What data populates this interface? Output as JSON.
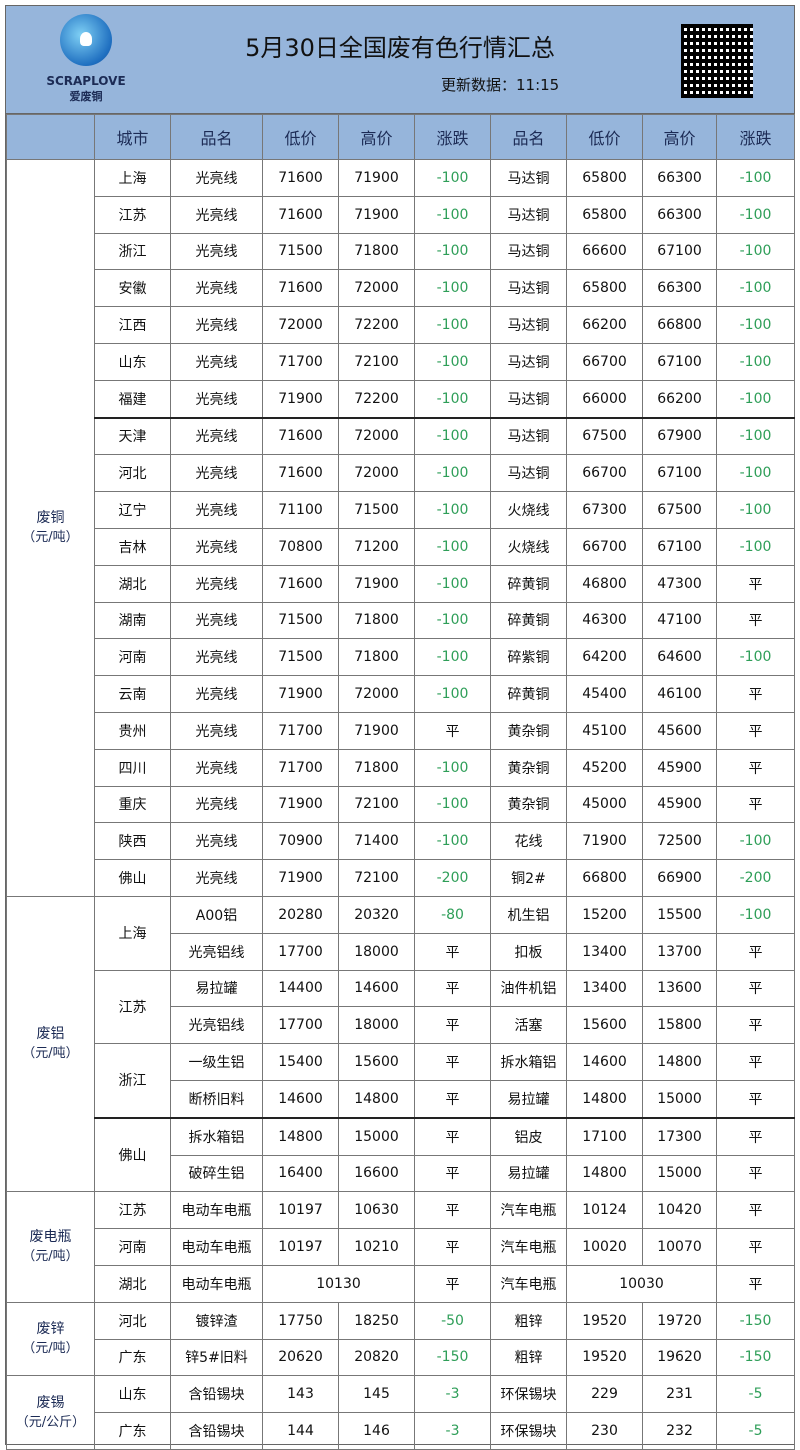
{
  "header": {
    "logo_text": "SCRAPLOVE",
    "logo_cn": "爱废铜",
    "title": "5月30日全国废有色行情汇总",
    "updated": "更新数据：11:15",
    "qr_icon": "qr-code-icon"
  },
  "columns": [
    "",
    "城市",
    "品名",
    "低价",
    "高价",
    "涨跌",
    "品名",
    "低价",
    "高价",
    "涨跌"
  ],
  "colors": {
    "header_bg": "#96b5db",
    "down": "#2e9e58",
    "text": "#1c2b55"
  },
  "sections": [
    {
      "name": "废铜",
      "unit": "（元/吨）",
      "rows": [
        [
          "上海",
          "光亮线",
          "71600",
          "71900",
          "-100",
          "马达铜",
          "65800",
          "66300",
          "-100"
        ],
        [
          "江苏",
          "光亮线",
          "71600",
          "71900",
          "-100",
          "马达铜",
          "65800",
          "66300",
          "-100"
        ],
        [
          "浙江",
          "光亮线",
          "71500",
          "71800",
          "-100",
          "马达铜",
          "66600",
          "67100",
          "-100"
        ],
        [
          "安徽",
          "光亮线",
          "71600",
          "72000",
          "-100",
          "马达铜",
          "65800",
          "66300",
          "-100"
        ],
        [
          "江西",
          "光亮线",
          "72000",
          "72200",
          "-100",
          "马达铜",
          "66200",
          "66800",
          "-100"
        ],
        [
          "山东",
          "光亮线",
          "71700",
          "72100",
          "-100",
          "马达铜",
          "66700",
          "67100",
          "-100"
        ],
        [
          "福建",
          "光亮线",
          "71900",
          "72200",
          "-100",
          "马达铜",
          "66000",
          "66200",
          "-100"
        ],
        [
          "天津",
          "光亮线",
          "71600",
          "72000",
          "-100",
          "马达铜",
          "67500",
          "67900",
          "-100"
        ],
        [
          "河北",
          "光亮线",
          "71600",
          "72000",
          "-100",
          "马达铜",
          "66700",
          "67100",
          "-100"
        ],
        [
          "辽宁",
          "光亮线",
          "71100",
          "71500",
          "-100",
          "火烧线",
          "67300",
          "67500",
          "-100"
        ],
        [
          "吉林",
          "光亮线",
          "70800",
          "71200",
          "-100",
          "火烧线",
          "66700",
          "67100",
          "-100"
        ],
        [
          "湖北",
          "光亮线",
          "71600",
          "71900",
          "-100",
          "碎黄铜",
          "46800",
          "47300",
          "平"
        ],
        [
          "湖南",
          "光亮线",
          "71500",
          "71800",
          "-100",
          "碎黄铜",
          "46300",
          "47100",
          "平"
        ],
        [
          "河南",
          "光亮线",
          "71500",
          "71800",
          "-100",
          "碎紫铜",
          "64200",
          "64600",
          "-100"
        ],
        [
          "云南",
          "光亮线",
          "71900",
          "72000",
          "-100",
          "碎黄铜",
          "45400",
          "46100",
          "平"
        ],
        [
          "贵州",
          "光亮线",
          "71700",
          "71900",
          "平",
          "黄杂铜",
          "45100",
          "45600",
          "平"
        ],
        [
          "四川",
          "光亮线",
          "71700",
          "71800",
          "-100",
          "黄杂铜",
          "45200",
          "45900",
          "平"
        ],
        [
          "重庆",
          "光亮线",
          "71900",
          "72100",
          "-100",
          "黄杂铜",
          "45000",
          "45900",
          "平"
        ],
        [
          "陕西",
          "光亮线",
          "70900",
          "71400",
          "-100",
          "花线",
          "71900",
          "72500",
          "-100"
        ],
        [
          "佛山",
          "光亮线",
          "71900",
          "72100",
          "-200",
          "铜2#",
          "66800",
          "66900",
          "-200"
        ]
      ]
    },
    {
      "name": "废铝",
      "unit": "（元/吨）",
      "rows": [
        [
          "上海",
          "A00铝",
          "20280",
          "20320",
          "-80",
          "机生铝",
          "15200",
          "15500",
          "-100"
        ],
        [
          "上海",
          "光亮铝线",
          "17700",
          "18000",
          "平",
          "扣板",
          "13400",
          "13700",
          "平"
        ],
        [
          "江苏",
          "易拉罐",
          "14400",
          "14600",
          "平",
          "油件机铝",
          "13400",
          "13600",
          "平"
        ],
        [
          "江苏",
          "光亮铝线",
          "17700",
          "18000",
          "平",
          "活塞",
          "15600",
          "15800",
          "平"
        ],
        [
          "浙江",
          "一级生铝",
          "15400",
          "15600",
          "平",
          "拆水箱铝",
          "14600",
          "14800",
          "平"
        ],
        [
          "浙江",
          "断桥旧料",
          "14600",
          "14800",
          "平",
          "易拉罐",
          "14800",
          "15000",
          "平"
        ],
        [
          "佛山",
          "拆水箱铝",
          "14800",
          "15000",
          "平",
          "铝皮",
          "17100",
          "17300",
          "平"
        ],
        [
          "佛山",
          "破碎生铝",
          "16400",
          "16600",
          "平",
          "易拉罐",
          "14800",
          "15000",
          "平"
        ]
      ]
    },
    {
      "name": "废电瓶",
      "unit": "（元/吨）",
      "rows": [
        [
          "江苏",
          "电动车电瓶",
          "10197",
          "10630",
          "平",
          "汽车电瓶",
          "10124",
          "10420",
          "平"
        ],
        [
          "河南",
          "电动车电瓶",
          "10197",
          "10210",
          "平",
          "汽车电瓶",
          "10020",
          "10070",
          "平"
        ],
        [
          "湖北",
          "电动车电瓶",
          "10130",
          null,
          "平",
          "汽车电瓶",
          "10030",
          null,
          "平"
        ]
      ]
    },
    {
      "name": "废锌",
      "unit": "（元/吨）",
      "rows": [
        [
          "河北",
          "镀锌渣",
          "17750",
          "18250",
          "-50",
          "粗锌",
          "19520",
          "19720",
          "-150"
        ],
        [
          "广东",
          "锌5#旧料",
          "20620",
          "20820",
          "-150",
          "粗锌",
          "19520",
          "19620",
          "-150"
        ]
      ]
    },
    {
      "name": "废锡",
      "unit": "（元/公斤）",
      "rows": [
        [
          "山东",
          "含铅锡块",
          "143",
          "145",
          "-3",
          "环保锡块",
          "229",
          "231",
          "-5"
        ],
        [
          "广东",
          "含铅锡块",
          "144",
          "146",
          "-3",
          "环保锡块",
          "230",
          "232",
          "-5"
        ]
      ]
    }
  ]
}
